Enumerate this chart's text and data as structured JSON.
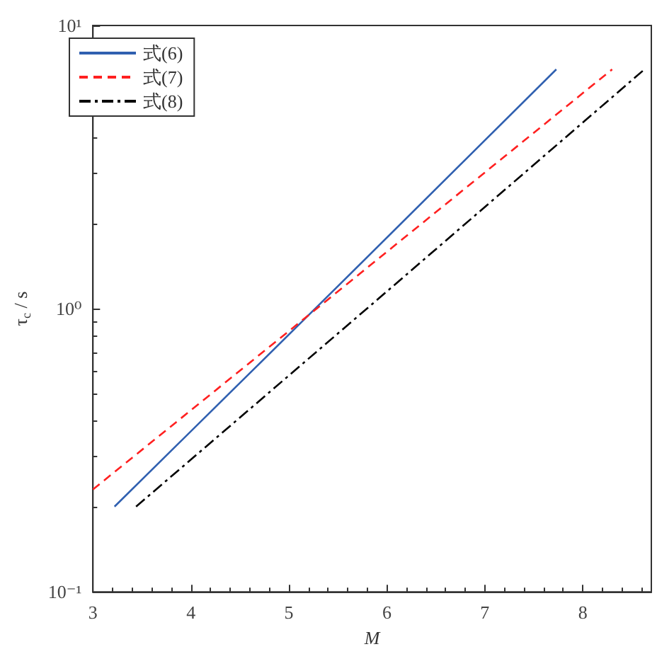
{
  "chart_data": {
    "type": "line",
    "xlabel": "M",
    "ylabel": "τ$_{c}$ / s",
    "series": [
      {
        "name": "式(6)",
        "color": "#3060b0",
        "line_style": "solid",
        "x": [
          3.22,
          5.5,
          7.73
        ],
        "values": [
          0.2,
          1.2,
          7.0
        ]
      },
      {
        "name": "式(7)",
        "color": "#ff2020",
        "line_style": "dashed",
        "x": [
          3.0,
          5.5,
          8.3
        ],
        "values": [
          0.23,
          1.15,
          7.0
        ]
      },
      {
        "name": "式(8)",
        "color": "#000000",
        "line_style": "dashdot",
        "x": [
          3.44,
          6.0,
          8.63
        ],
        "values": [
          0.2,
          1.15,
          7.0
        ]
      }
    ],
    "xlim": [
      3,
      8.7
    ],
    "xticks": [
      3,
      4,
      5,
      6,
      7,
      8
    ],
    "ylim": [
      0.1,
      10
    ],
    "yticks": [
      {
        "value": 0.1,
        "label": "10⁻¹"
      },
      {
        "value": 1,
        "label": "10⁰"
      },
      {
        "value": 10,
        "label": "10¹"
      }
    ],
    "log": "y",
    "grid": false,
    "legend": "top left",
    "marker": "none"
  }
}
